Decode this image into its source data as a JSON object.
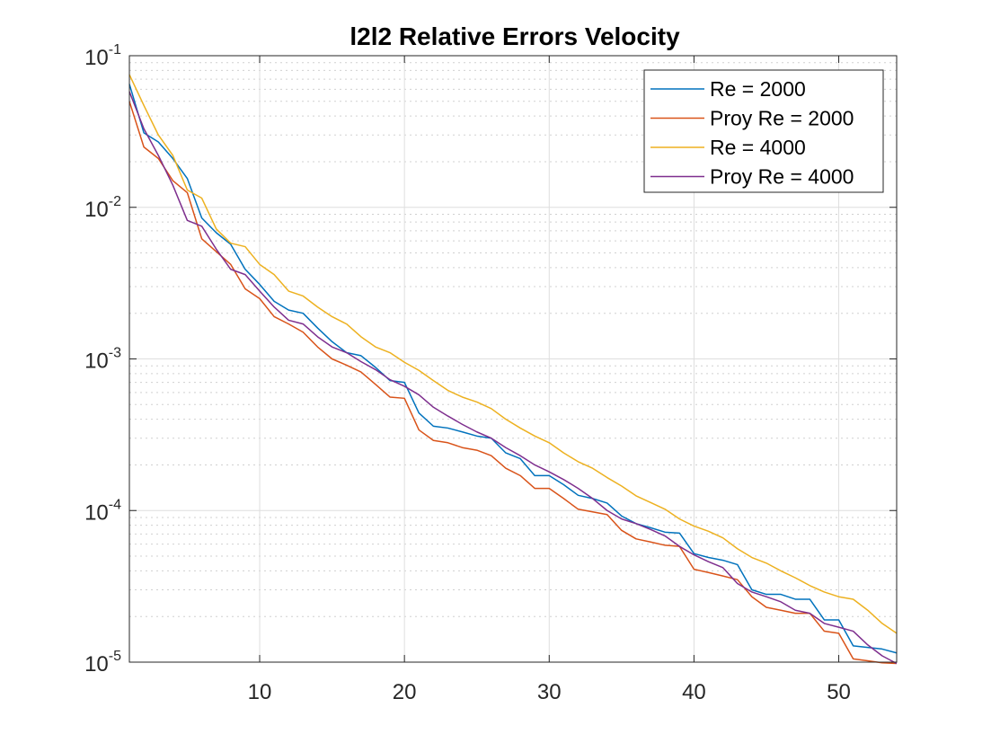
{
  "chart_data": {
    "type": "line",
    "title": "l2l2 Relative Errors Velocity",
    "xlabel": "",
    "ylabel": "",
    "xlim": [
      1,
      54
    ],
    "ylim": [
      1e-05,
      0.1
    ],
    "yscale": "log",
    "grid": true,
    "legend_location": "top-right",
    "x_ticks": [
      10,
      20,
      30,
      40,
      50
    ],
    "x_tick_labels": [
      "10",
      "20",
      "30",
      "40",
      "50"
    ],
    "y_ticks": [
      1e-05,
      0.0001,
      0.001,
      0.01,
      0.1
    ],
    "y_tick_labels": [
      {
        "base": "10",
        "exp": "-5"
      },
      {
        "base": "10",
        "exp": "-4"
      },
      {
        "base": "10",
        "exp": "-3"
      },
      {
        "base": "10",
        "exp": "-2"
      },
      {
        "base": "10",
        "exp": "-1"
      }
    ],
    "x": [
      1,
      2,
      3,
      4,
      5,
      6,
      7,
      8,
      9,
      10,
      11,
      12,
      13,
      14,
      15,
      16,
      17,
      18,
      19,
      20,
      21,
      22,
      23,
      24,
      25,
      26,
      27,
      28,
      29,
      30,
      31,
      32,
      33,
      34,
      35,
      36,
      37,
      38,
      39,
      40,
      41,
      42,
      43,
      44,
      45,
      46,
      47,
      48,
      49,
      50,
      51,
      52,
      53,
      54
    ],
    "series": [
      {
        "name": "Re = 2000",
        "color": "#0072BD",
        "values": [
          0.065,
          0.031,
          0.027,
          0.021,
          0.0155,
          0.0085,
          0.0068,
          0.0057,
          0.0039,
          0.0031,
          0.0024,
          0.0021,
          0.002,
          0.0016,
          0.0013,
          0.0011,
          0.00105,
          0.00088,
          0.00072,
          0.0007,
          0.00044,
          0.00036,
          0.00035,
          0.00033,
          0.00031,
          0.0003,
          0.00024,
          0.00022,
          0.00017,
          0.00017,
          0.000148,
          0.000126,
          0.00012,
          0.000112,
          9.2e-05,
          8.2e-05,
          7.7e-05,
          7.2e-05,
          7.1e-05,
          5.2e-05,
          4.9e-05,
          4.7e-05,
          4.4e-05,
          3e-05,
          2.8e-05,
          2.8e-05,
          2.6e-05,
          2.6e-05,
          1.9e-05,
          1.9e-05,
          1.28e-05,
          1.25e-05,
          1.22e-05,
          1.15e-05
        ]
      },
      {
        "name": "Proy Re = 2000",
        "color": "#D95319",
        "values": [
          0.05,
          0.025,
          0.021,
          0.015,
          0.0125,
          0.0062,
          0.0051,
          0.0042,
          0.0029,
          0.0025,
          0.0019,
          0.0017,
          0.0015,
          0.0012,
          0.001,
          0.00091,
          0.00082,
          0.00068,
          0.00056,
          0.00055,
          0.00034,
          0.00029,
          0.00028,
          0.00026,
          0.00025,
          0.00023,
          0.00019,
          0.00017,
          0.00014,
          0.00014,
          0.00012,
          0.000102,
          9.8e-05,
          9.4e-05,
          7.4e-05,
          6.5e-05,
          6.2e-05,
          5.9e-05,
          5.8e-05,
          4.1e-05,
          3.9e-05,
          3.7e-05,
          3.5e-05,
          2.7e-05,
          2.3e-05,
          2.2e-05,
          2.1e-05,
          2.1e-05,
          1.6e-05,
          1.55e-05,
          1.05e-05,
          1.02e-05,
          9.9e-06,
          9.8e-06
        ]
      },
      {
        "name": "Re = 4000",
        "color": "#EDB120",
        "values": [
          0.075,
          0.047,
          0.03,
          0.022,
          0.013,
          0.0115,
          0.0072,
          0.0058,
          0.0055,
          0.0042,
          0.0036,
          0.0028,
          0.0026,
          0.0022,
          0.0019,
          0.0017,
          0.0014,
          0.0012,
          0.0011,
          0.00095,
          0.00084,
          0.00072,
          0.00062,
          0.00056,
          0.00052,
          0.00047,
          0.0004,
          0.00035,
          0.00031,
          0.00028,
          0.00024,
          0.00021,
          0.00019,
          0.000165,
          0.000145,
          0.000125,
          0.000113,
          0.000102,
          8.8e-05,
          7.9e-05,
          7.3e-05,
          6.6e-05,
          5.6e-05,
          4.9e-05,
          4.5e-05,
          4e-05,
          3.6e-05,
          3.2e-05,
          2.9e-05,
          2.7e-05,
          2.6e-05,
          2.2e-05,
          1.8e-05,
          1.55e-05
        ]
      },
      {
        "name": "Proy Re = 4000",
        "color": "#7E2F8E",
        "values": [
          0.058,
          0.033,
          0.022,
          0.014,
          0.0082,
          0.0075,
          0.0053,
          0.0039,
          0.0036,
          0.0028,
          0.0022,
          0.0018,
          0.0017,
          0.0014,
          0.0012,
          0.0011,
          0.00096,
          0.00085,
          0.00073,
          0.00066,
          0.00058,
          0.00048,
          0.00042,
          0.00037,
          0.00033,
          0.0003,
          0.00026,
          0.00023,
          0.0002,
          0.00018,
          0.00016,
          0.00014,
          0.00012,
          0.0001,
          8.8e-05,
          8.2e-05,
          7.5e-05,
          6.8e-05,
          5.8e-05,
          5.1e-05,
          4.6e-05,
          4.2e-05,
          3.3e-05,
          2.9e-05,
          2.7e-05,
          2.5e-05,
          2.2e-05,
          2.1e-05,
          1.8e-05,
          1.7e-05,
          1.6e-05,
          1.3e-05,
          1.1e-05,
          9.8e-06
        ]
      }
    ]
  }
}
